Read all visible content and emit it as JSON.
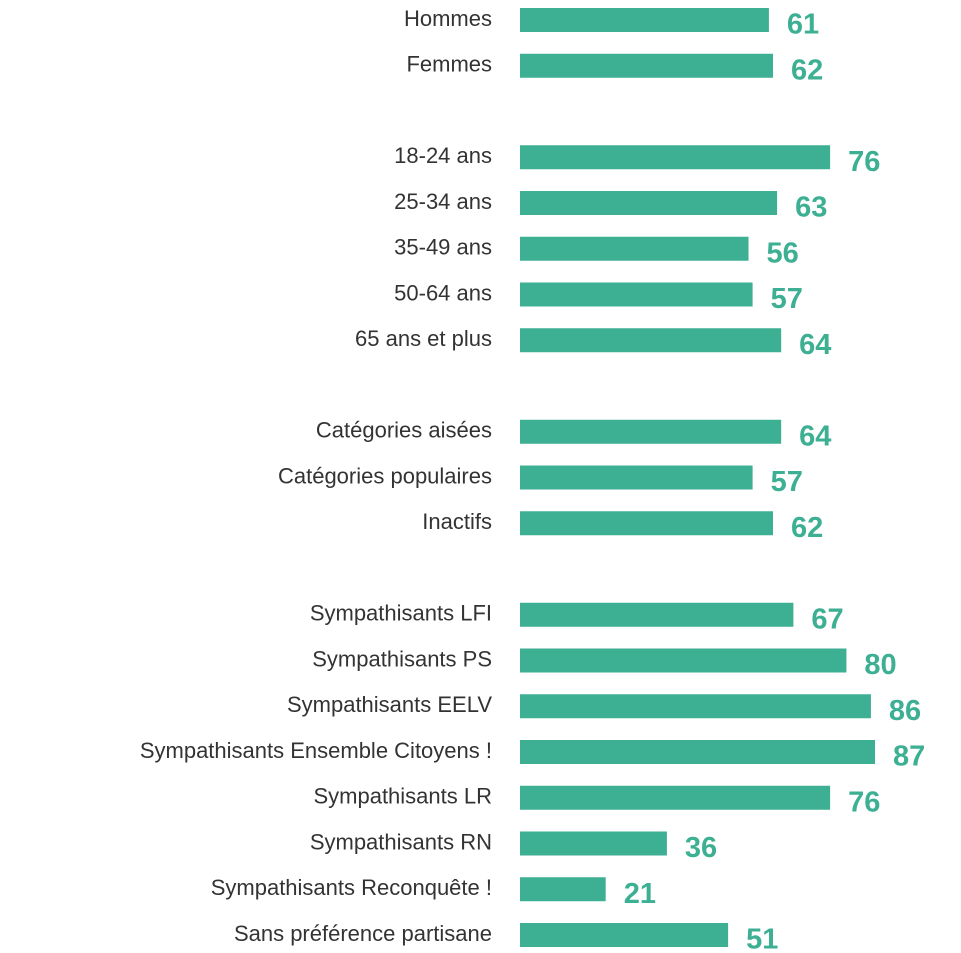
{
  "chart_data": {
    "type": "barh",
    "categories": [
      "Hommes",
      "Femmes",
      null,
      "18-24 ans",
      "25-34 ans",
      "35-49 ans",
      "50-64 ans",
      "65 ans et plus",
      null,
      "Catégories aisées",
      "Catégories populaires",
      "Inactifs",
      null,
      "Sympathisants LFI",
      "Sympathisants PS",
      "Sympathisants EELV",
      "Sympathisants Ensemble Citoyens !",
      "Sympathisants LR",
      "Sympathisants RN",
      "Sympathisants Reconquête !",
      "Sans préférence partisane"
    ],
    "values": [
      61,
      62,
      null,
      76,
      63,
      56,
      57,
      64,
      null,
      64,
      57,
      62,
      null,
      67,
      80,
      86,
      87,
      76,
      36,
      21,
      51
    ],
    "color": "#3daf93"
  }
}
